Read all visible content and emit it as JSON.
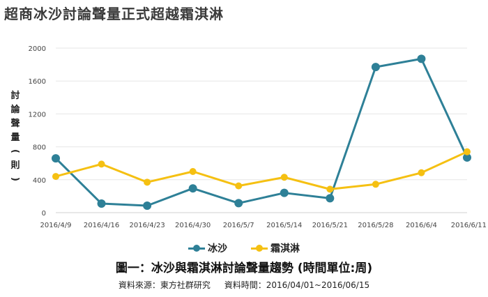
{
  "title": "超商冰沙討論聲量正式超越霜淇淋",
  "chart_data": {
    "type": "line",
    "x": [
      "2016/4/9",
      "2016/4/16",
      "2016/4/23",
      "2016/4/30",
      "2016/5/7",
      "2016/5/14",
      "2016/5/21",
      "2016/5/28",
      "2016/6/4",
      "2016/6/11"
    ],
    "series": [
      {
        "name": "冰沙",
        "color": "#2e8097",
        "values": [
          660,
          110,
          85,
          295,
          115,
          240,
          175,
          1770,
          1870,
          670
        ]
      },
      {
        "name": "霜淇淋",
        "color": "#f5c012",
        "values": [
          440,
          590,
          370,
          500,
          325,
          430,
          285,
          345,
          485,
          740
        ]
      }
    ],
    "ylabel": "討論聲量(則)",
    "ylim": [
      0,
      2000
    ],
    "yticks": [
      0,
      400,
      800,
      1200,
      1600,
      2000
    ],
    "grid": true,
    "legend_position": "bottom-center"
  },
  "caption": "圖一：冰沙與霜淇淋討論聲量趨勢 (時間單位:周)",
  "source": {
    "label": "資料來源：東方社群研究",
    "period": "資料時間：2016/04/01~2016/06/15"
  }
}
